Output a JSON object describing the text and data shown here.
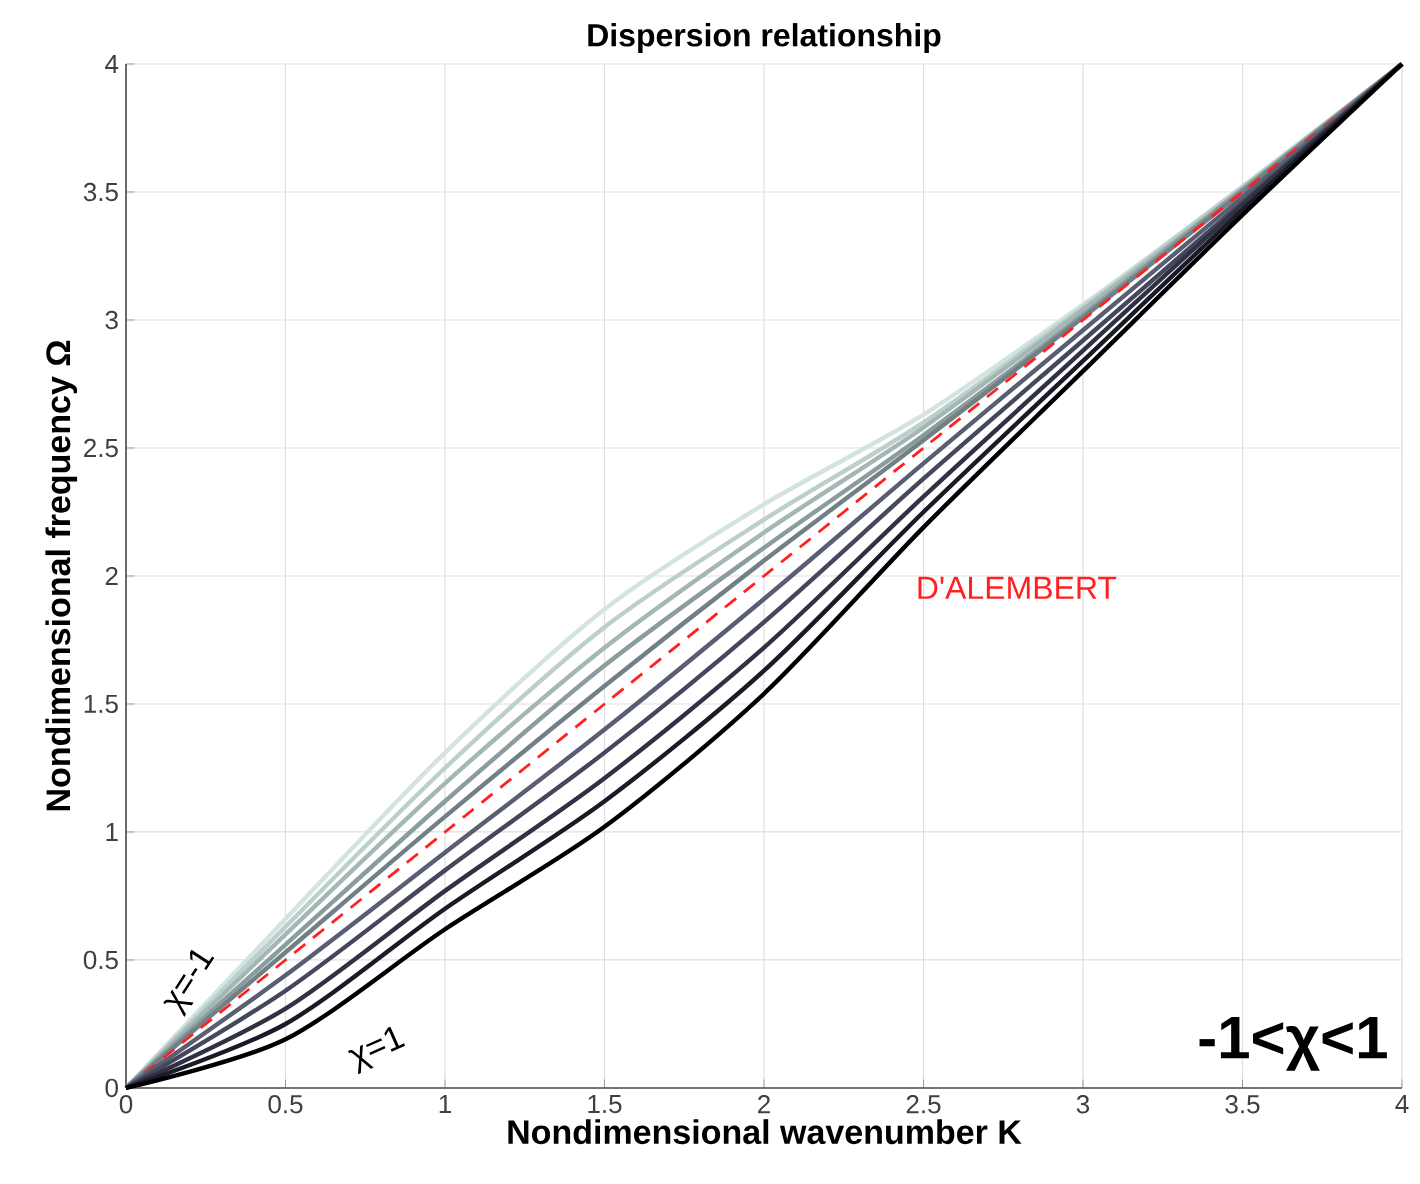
{
  "chart_data": {
    "type": "line",
    "title": "Dispersion relationship",
    "xlabel": "Nondimensional wavenumber K",
    "ylabel": "Nondimensional frequency Ω",
    "x": [
      0,
      0.5,
      1,
      1.5,
      2,
      2.5,
      3,
      3.5,
      4
    ],
    "series": [
      {
        "color": "#d3e3df",
        "values": [
          0,
          0.66,
          1.31,
          1.87,
          2.28,
          2.63,
          3.06,
          3.52,
          4
        ]
      },
      {
        "color": "#bccfcb",
        "values": [
          0,
          0.63,
          1.25,
          1.8,
          2.22,
          2.6,
          3.05,
          3.52,
          4
        ]
      },
      {
        "color": "#a3b7b5",
        "values": [
          0,
          0.6,
          1.19,
          1.72,
          2.17,
          2.58,
          3.04,
          3.51,
          4
        ]
      },
      {
        "color": "#8a9c9e",
        "values": [
          0,
          0.56,
          1.12,
          1.65,
          2.11,
          2.55,
          3.02,
          3.51,
          4
        ]
      },
      {
        "color": "#718086",
        "values": [
          0,
          0.53,
          1.06,
          1.57,
          2.06,
          2.53,
          3.01,
          3.5,
          4
        ]
      },
      {
        "name": "D'ALEMBERT",
        "color": "#ff2020",
        "line_style": "dashed",
        "values": [
          0,
          0.5,
          1,
          1.5,
          2,
          2.5,
          3,
          3.5,
          4
        ]
      },
      {
        "color": "#5a5e72",
        "values": [
          0,
          0.44,
          0.92,
          1.4,
          1.91,
          2.44,
          2.96,
          3.48,
          4
        ]
      },
      {
        "color": "#45485c",
        "values": [
          0,
          0.38,
          0.85,
          1.31,
          1.82,
          2.38,
          2.92,
          3.46,
          4
        ]
      },
      {
        "color": "#303244",
        "values": [
          0,
          0.31,
          0.77,
          1.21,
          1.72,
          2.31,
          2.88,
          3.45,
          4
        ]
      },
      {
        "color": "#1a1b26",
        "values": [
          0,
          0.25,
          0.7,
          1.12,
          1.63,
          2.25,
          2.84,
          3.43,
          4
        ]
      },
      {
        "color": "#000000",
        "values": [
          0,
          0.19,
          0.62,
          1.02,
          1.54,
          2.19,
          2.8,
          3.41,
          4
        ]
      }
    ],
    "xlim": [
      0,
      4
    ],
    "ylim": [
      0,
      4
    ],
    "xticks": [
      0,
      0.5,
      1,
      1.5,
      2,
      2.5,
      3,
      3.5,
      4
    ],
    "yticks": [
      0,
      0.5,
      1,
      1.5,
      2,
      2.5,
      3,
      3.5,
      4
    ],
    "grid": true,
    "annotations": [
      "χ=-1",
      "χ=1",
      "-1<χ<1"
    ]
  }
}
